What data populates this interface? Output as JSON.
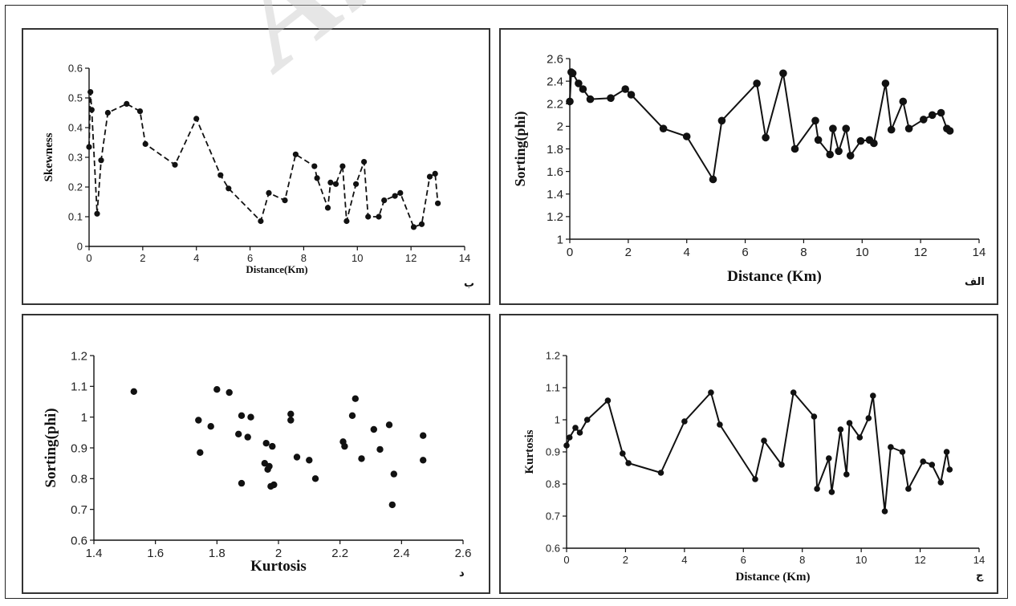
{
  "watermark": "Arch",
  "chart_data": [
    {
      "id": "skew",
      "type": "line",
      "panel_label": "ب",
      "xlabel": "Distance(Km)",
      "ylabel": "Skewness",
      "xlim": [
        0,
        14
      ],
      "ylim": [
        0,
        0.6
      ],
      "xticks": [
        0,
        2,
        4,
        6,
        8,
        10,
        12,
        14
      ],
      "yticks": [
        0,
        0.1,
        0.2,
        0.3,
        0.4,
        0.5,
        0.6
      ],
      "line_style": "dashed",
      "series": [
        {
          "x": [
            0,
            0.05,
            0.1,
            0.3,
            0.45,
            0.7,
            1.4,
            1.9,
            2.1,
            3.2,
            4.0,
            4.9,
            5.2,
            6.4,
            6.7,
            7.3,
            7.7,
            8.4,
            8.5,
            8.9,
            9.0,
            9.2,
            9.45,
            9.6,
            9.95,
            10.25,
            10.4,
            10.8,
            11.0,
            11.4,
            11.6,
            12.1,
            12.4,
            12.7,
            12.9,
            13.0
          ],
          "y": [
            0.335,
            0.52,
            0.46,
            0.11,
            0.29,
            0.45,
            0.48,
            0.455,
            0.345,
            0.275,
            0.43,
            0.24,
            0.195,
            0.085,
            0.18,
            0.155,
            0.31,
            0.27,
            0.23,
            0.13,
            0.215,
            0.21,
            0.27,
            0.085,
            0.21,
            0.285,
            0.1,
            0.1,
            0.155,
            0.17,
            0.18,
            0.065,
            0.075,
            0.235,
            0.245,
            0.145
          ]
        }
      ]
    },
    {
      "id": "sort",
      "type": "line",
      "panel_label": "الف",
      "xlabel": "Distance (Km)",
      "ylabel": "Sorting(phi)",
      "xlim": [
        0,
        14
      ],
      "ylim": [
        1,
        2.6
      ],
      "xticks": [
        0,
        2,
        4,
        6,
        8,
        10,
        12,
        14
      ],
      "yticks": [
        1,
        1.2,
        1.4,
        1.6,
        1.8,
        2,
        2.2,
        2.4,
        2.6
      ],
      "line_style": "solid",
      "series": [
        {
          "x": [
            0,
            0.05,
            0.1,
            0.3,
            0.45,
            0.7,
            1.4,
            1.9,
            2.1,
            3.2,
            4.0,
            4.9,
            5.2,
            6.4,
            6.7,
            7.3,
            7.7,
            8.4,
            8.5,
            8.9,
            9.0,
            9.2,
            9.45,
            9.6,
            9.95,
            10.25,
            10.4,
            10.8,
            11.0,
            11.4,
            11.6,
            12.1,
            12.4,
            12.7,
            12.9,
            13.0
          ],
          "y": [
            2.22,
            2.48,
            2.47,
            2.38,
            2.33,
            2.24,
            2.25,
            2.33,
            2.28,
            1.98,
            1.91,
            1.53,
            2.05,
            2.38,
            1.9,
            2.47,
            1.8,
            2.05,
            1.88,
            1.75,
            1.98,
            1.78,
            1.98,
            1.74,
            1.87,
            1.88,
            1.85,
            2.38,
            1.97,
            2.22,
            1.98,
            2.06,
            2.1,
            2.12,
            1.98,
            1.96
          ]
        }
      ]
    },
    {
      "id": "scatter",
      "type": "scatter",
      "panel_label": "د",
      "xlabel": "Kurtosis",
      "ylabel": "Sorting(phi)",
      "xlim": [
        1.4,
        2.6
      ],
      "ylim": [
        0.6,
        1.2
      ],
      "xticks": [
        1.4,
        1.6,
        1.8,
        2,
        2.2,
        2.4,
        2.6
      ],
      "yticks": [
        0.6,
        0.7,
        0.8,
        0.9,
        1,
        1.1,
        1.2
      ],
      "series": [
        {
          "x": [
            1.53,
            1.74,
            1.745,
            1.78,
            1.8,
            1.84,
            1.87,
            1.88,
            1.88,
            1.9,
            1.91,
            1.955,
            1.96,
            1.965,
            1.97,
            1.975,
            1.98,
            1.985,
            2.04,
            2.04,
            2.06,
            2.1,
            2.12,
            2.21,
            2.215,
            2.24,
            2.25,
            2.27,
            2.31,
            2.33,
            2.36,
            2.37,
            2.375,
            2.47,
            2.47
          ],
          "y": [
            1.083,
            0.99,
            0.885,
            0.97,
            1.09,
            1.08,
            0.945,
            1.005,
            0.785,
            0.935,
            1.0,
            0.85,
            0.915,
            0.83,
            0.84,
            0.775,
            0.905,
            0.78,
            1.01,
            0.99,
            0.87,
            0.86,
            0.8,
            0.92,
            0.905,
            1.005,
            1.06,
            0.865,
            0.96,
            0.895,
            0.975,
            0.715,
            0.815,
            0.94,
            0.86
          ]
        }
      ]
    },
    {
      "id": "kurt",
      "type": "line",
      "panel_label": "ج",
      "xlabel": "Distance (Km)",
      "ylabel": "Kurtosis",
      "xlim": [
        0,
        14
      ],
      "ylim": [
        0.6,
        1.2
      ],
      "xticks": [
        0,
        2,
        4,
        6,
        8,
        10,
        12,
        14
      ],
      "yticks": [
        0.6,
        0.7,
        0.8,
        0.9,
        1,
        1.1,
        1.2
      ],
      "line_style": "solid",
      "series": [
        {
          "x": [
            0,
            0.1,
            0.3,
            0.45,
            0.7,
            1.4,
            1.9,
            2.1,
            3.2,
            4.0,
            4.9,
            5.2,
            6.4,
            6.7,
            7.3,
            7.7,
            8.4,
            8.5,
            8.9,
            9.0,
            9.3,
            9.5,
            9.6,
            9.95,
            10.25,
            10.4,
            10.8,
            11.0,
            11.4,
            11.6,
            12.1,
            12.4,
            12.7,
            12.9,
            13.0
          ],
          "y": [
            0.92,
            0.945,
            0.975,
            0.96,
            1.0,
            1.06,
            0.895,
            0.865,
            0.835,
            0.995,
            1.085,
            0.985,
            0.815,
            0.935,
            0.86,
            1.085,
            1.01,
            0.785,
            0.88,
            0.775,
            0.97,
            0.83,
            0.99,
            0.945,
            1.005,
            1.075,
            0.715,
            0.915,
            0.9,
            0.785,
            0.87,
            0.86,
            0.805,
            0.9,
            0.845
          ]
        }
      ]
    }
  ]
}
